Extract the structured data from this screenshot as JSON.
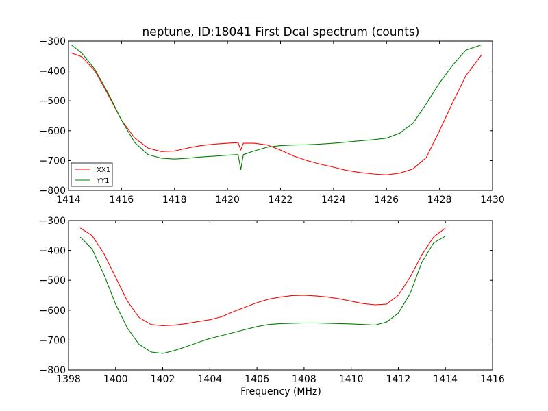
{
  "chart_data": [
    {
      "type": "line",
      "title": "neptune, ID:18041 First Dcal spectrum (counts)",
      "xlabel": "",
      "ylabel": "",
      "xlim": [
        1414,
        1430
      ],
      "ylim": [
        -800,
        -300
      ],
      "xticks": [
        1414,
        1416,
        1418,
        1420,
        1422,
        1424,
        1426,
        1428,
        1430
      ],
      "yticks": [
        -300,
        -400,
        -500,
        -600,
        -700,
        -800
      ],
      "legend": {
        "position": "lower-left",
        "entries": [
          "XX1",
          "YY1"
        ]
      },
      "series": [
        {
          "name": "XX1",
          "color": "#ff0000",
          "x": [
            1414.1,
            1414.5,
            1415.0,
            1415.5,
            1416.0,
            1416.5,
            1417.0,
            1417.5,
            1418.0,
            1418.5,
            1419.0,
            1419.5,
            1420.0,
            1420.4,
            1420.5,
            1420.6,
            1421.0,
            1421.5,
            1422.0,
            1422.5,
            1423.0,
            1423.5,
            1424.0,
            1424.5,
            1425.0,
            1425.5,
            1426.0,
            1426.5,
            1427.0,
            1427.5,
            1428.0,
            1428.5,
            1429.0,
            1429.6
          ],
          "y": [
            -340,
            -352,
            -400,
            -480,
            -565,
            -625,
            -658,
            -670,
            -668,
            -658,
            -650,
            -645,
            -642,
            -640,
            -665,
            -642,
            -642,
            -648,
            -665,
            -685,
            -700,
            -712,
            -722,
            -733,
            -740,
            -745,
            -748,
            -742,
            -728,
            -690,
            -600,
            -505,
            -415,
            -345
          ]
        },
        {
          "name": "YY1",
          "color": "#008000",
          "x": [
            1414.1,
            1414.5,
            1415.0,
            1415.5,
            1416.0,
            1416.5,
            1417.0,
            1417.5,
            1418.0,
            1418.5,
            1419.0,
            1419.5,
            1420.0,
            1420.4,
            1420.5,
            1420.6,
            1421.0,
            1421.5,
            1422.0,
            1422.5,
            1423.0,
            1423.5,
            1424.0,
            1424.5,
            1425.0,
            1425.5,
            1426.0,
            1426.5,
            1427.0,
            1427.5,
            1428.0,
            1428.5,
            1429.0,
            1429.6
          ],
          "y": [
            -312,
            -340,
            -395,
            -475,
            -565,
            -640,
            -680,
            -692,
            -695,
            -692,
            -688,
            -685,
            -682,
            -680,
            -730,
            -680,
            -668,
            -655,
            -650,
            -648,
            -647,
            -645,
            -642,
            -638,
            -634,
            -630,
            -625,
            -608,
            -575,
            -510,
            -440,
            -380,
            -330,
            -312
          ]
        }
      ]
    },
    {
      "type": "line",
      "title": "",
      "xlabel": "Frequency (MHz)",
      "ylabel": "",
      "xlim": [
        1398,
        1416
      ],
      "ylim": [
        -800,
        -300
      ],
      "xticks": [
        1398,
        1400,
        1402,
        1404,
        1406,
        1408,
        1410,
        1412,
        1414,
        1416
      ],
      "yticks": [
        -300,
        -400,
        -500,
        -600,
        -700,
        -800
      ],
      "series": [
        {
          "name": "XX1",
          "color": "#ff0000",
          "x": [
            1398.5,
            1399.0,
            1399.5,
            1400.0,
            1400.5,
            1401.0,
            1401.5,
            1402.0,
            1402.5,
            1403.0,
            1403.5,
            1404.0,
            1404.5,
            1405.0,
            1405.5,
            1406.0,
            1406.5,
            1407.0,
            1407.5,
            1408.0,
            1408.5,
            1409.0,
            1409.5,
            1410.0,
            1410.5,
            1411.0,
            1411.5,
            1412.0,
            1412.5,
            1413.0,
            1413.5,
            1414.0
          ],
          "y": [
            -325,
            -350,
            -410,
            -490,
            -570,
            -625,
            -648,
            -652,
            -650,
            -645,
            -638,
            -632,
            -622,
            -605,
            -590,
            -575,
            -563,
            -556,
            -551,
            -550,
            -552,
            -556,
            -562,
            -570,
            -578,
            -582,
            -580,
            -550,
            -490,
            -415,
            -355,
            -325
          ]
        },
        {
          "name": "YY1",
          "color": "#008000",
          "x": [
            1398.5,
            1399.0,
            1399.5,
            1400.0,
            1400.5,
            1401.0,
            1401.5,
            1402.0,
            1402.5,
            1403.0,
            1403.5,
            1404.0,
            1404.5,
            1405.0,
            1405.5,
            1406.0,
            1406.5,
            1407.0,
            1407.5,
            1408.0,
            1408.5,
            1409.0,
            1409.5,
            1410.0,
            1410.5,
            1411.0,
            1411.5,
            1412.0,
            1412.5,
            1413.0,
            1413.5,
            1414.0
          ],
          "y": [
            -355,
            -395,
            -480,
            -580,
            -660,
            -715,
            -740,
            -745,
            -735,
            -722,
            -708,
            -695,
            -685,
            -675,
            -665,
            -655,
            -648,
            -645,
            -644,
            -643,
            -643,
            -644,
            -645,
            -646,
            -648,
            -650,
            -640,
            -610,
            -545,
            -440,
            -375,
            -352
          ]
        }
      ]
    }
  ]
}
